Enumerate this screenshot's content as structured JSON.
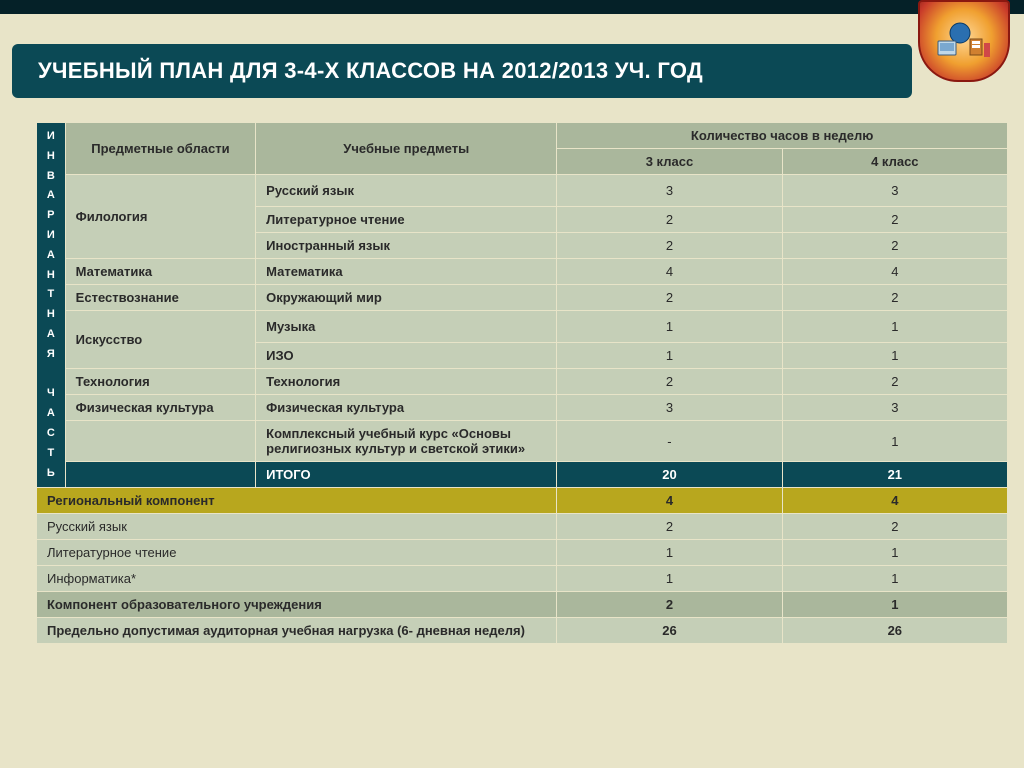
{
  "title": "УЧЕБНЫЙ ПЛАН ДЛЯ 3-4-Х КЛАССОВ НА 2012/2013 УЧ. ГОД",
  "side_label": "ИНВАРИАНТНАЯ ЧАСТЬ",
  "columns": {
    "areas": "Предметные области",
    "subjects": "Учебные предметы",
    "hours": "Количество часов в неделю",
    "grade3": "3 класс",
    "grade4": "4 класс"
  },
  "rows": [
    {
      "area": "Филология",
      "area_rowspan": 3,
      "subject": "Русский язык",
      "g3": "3",
      "g4": "3"
    },
    {
      "subject": "Литературное чтение",
      "g3": "2",
      "g4": "2"
    },
    {
      "subject": "Иностранный язык",
      "g3": "2",
      "g4": "2"
    },
    {
      "area": "Математика",
      "area_rowspan": 1,
      "subject": "Математика",
      "g3": "4",
      "g4": "4"
    },
    {
      "area": "Естествознание",
      "area_rowspan": 1,
      "subject": "Окружающий мир",
      "g3": "2",
      "g4": "2"
    },
    {
      "area": "Искусство",
      "area_rowspan": 2,
      "subject": "Музыка",
      "g3": "1",
      "g4": "1"
    },
    {
      "subject": "ИЗО",
      "g3": "1",
      "g4": "1"
    },
    {
      "area": "Технология",
      "area_rowspan": 1,
      "subject": "Технология",
      "g3": "2",
      "g4": "2"
    },
    {
      "area": "Физическая культура",
      "area_rowspan": 1,
      "subject": "Физическая культура",
      "g3": "3",
      "g4": "3"
    },
    {
      "area": "",
      "area_rowspan": 1,
      "subject": "Комплексный учебный курс «Основы религиозных культур и светской этики»",
      "g3": "-",
      "g4": "1"
    }
  ],
  "itogo": {
    "label": "ИТОГО",
    "g3": "20",
    "g4": "21"
  },
  "regional": {
    "label": "Региональный компонент",
    "g3": "4",
    "g4": "4"
  },
  "lower_rows": [
    {
      "label": "Русский язык",
      "g3": "2",
      "g4": "2"
    },
    {
      "label": "Литературное чтение",
      "g3": "1",
      "g4": "1"
    },
    {
      "label": "Информатика*",
      "g3": "1",
      "g4": "1"
    }
  ],
  "component": {
    "label": "Компонент образовательного учреждения",
    "g3": "2",
    "g4": "1"
  },
  "maxload": {
    "label": "Предельно допустимая аудиторная учебная нагрузка (6- дневная неделя)",
    "g3": "26",
    "g4": "26"
  },
  "style": {
    "page_bg": "#e8e4c8",
    "dark_bg": "#052128",
    "title_bg": "#0b4955",
    "title_color": "#ffffff",
    "header_bg": "#aab79c",
    "cell_bg": "#c5cfb7",
    "itogo_bg": "#0b4955",
    "regional_bg": "#b8a71e",
    "border_color": "#e8e4c8",
    "title_fontsize": 22,
    "body_fontsize": 13,
    "side_fontsize": 11
  }
}
